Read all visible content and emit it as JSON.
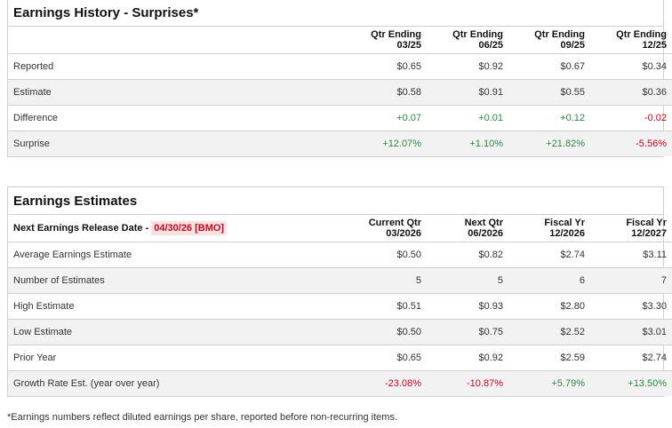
{
  "history": {
    "title": "Earnings History - Surprises*",
    "columns": [
      [
        "Qtr Ending",
        "03/25"
      ],
      [
        "Qtr Ending",
        "06/25"
      ],
      [
        "Qtr Ending",
        "09/25"
      ],
      [
        "Qtr Ending",
        "12/25"
      ]
    ],
    "rows": [
      {
        "label": "Reported",
        "values": [
          "$0.65",
          "$0.92",
          "$0.67",
          "$0.34"
        ]
      },
      {
        "label": "Estimate",
        "values": [
          "$0.58",
          "$0.91",
          "$0.55",
          "$0.36"
        ]
      },
      {
        "label": "Difference",
        "values": [
          "+0.07",
          "+0.01",
          "+0.12",
          "-0.02"
        ]
      },
      {
        "label": "Surprise",
        "values": [
          "+12.07%",
          "+1.10%",
          "+21.82%",
          "-5.56%"
        ]
      }
    ]
  },
  "estimates": {
    "title": "Earnings Estimates",
    "release_label": "Next Earnings Release Date -",
    "release_date": "04/30/26 [BMO]",
    "columns": [
      [
        "Current Qtr",
        "03/2026"
      ],
      [
        "Next Qtr",
        "06/2026"
      ],
      [
        "Fiscal Yr",
        "12/2026"
      ],
      [
        "Fiscal Yr",
        "12/2027"
      ]
    ],
    "rows": [
      {
        "label": "Average Earnings Estimate",
        "values": [
          "$0.50",
          "$0.82",
          "$2.74",
          "$3.11"
        ]
      },
      {
        "label": "Number of Estimates",
        "values": [
          "5",
          "5",
          "6",
          "7"
        ]
      },
      {
        "label": "High Estimate",
        "values": [
          "$0.51",
          "$0.93",
          "$2.80",
          "$3.30"
        ]
      },
      {
        "label": "Low Estimate",
        "values": [
          "$0.50",
          "$0.75",
          "$2.52",
          "$3.01"
        ]
      },
      {
        "label": "Prior Year",
        "values": [
          "$0.65",
          "$0.92",
          "$2.59",
          "$2.74"
        ]
      },
      {
        "label": "Growth Rate Est. (year over year)",
        "values": [
          "-23.08%",
          "-10.87%",
          "+5.79%",
          "+13.50%"
        ]
      }
    ]
  },
  "footnote": "*Earnings numbers reflect diluted earnings per share, reported before non-recurring items.",
  "colors": {
    "positive": "#2a8a3e",
    "negative": "#d0021b"
  }
}
